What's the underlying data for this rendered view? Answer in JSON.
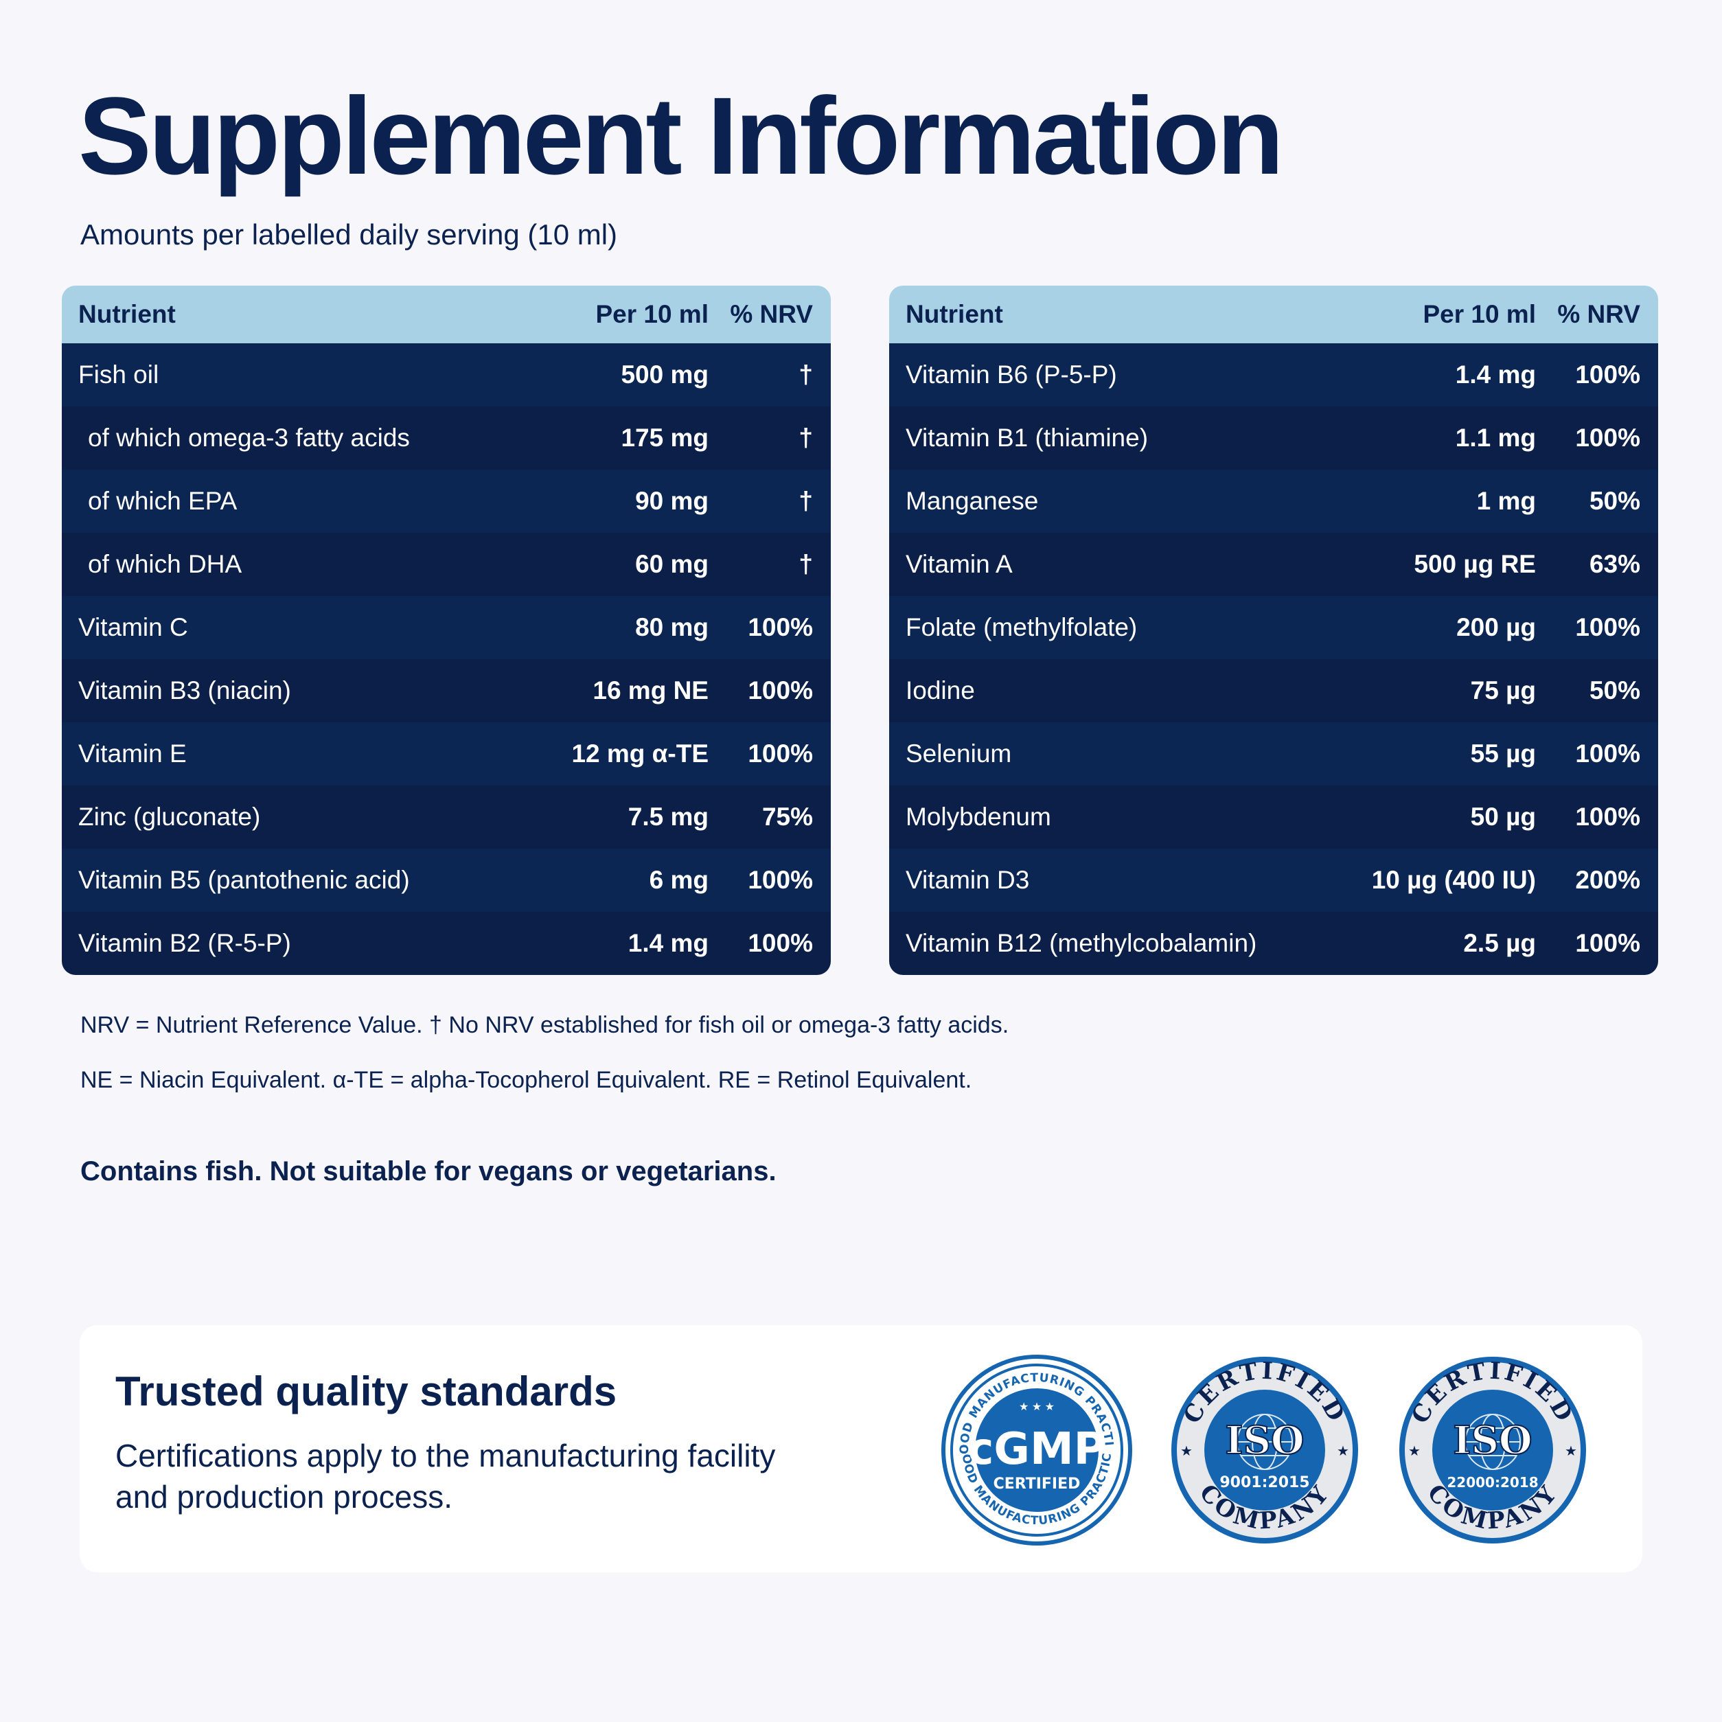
{
  "title": "Supplement Information",
  "subtitle": "Amounts per labelled daily serving (10 ml)",
  "table_headers": {
    "nutrient": "Nutrient",
    "amount": "Per 10 ml",
    "nrv": "% NRV"
  },
  "left_table": [
    {
      "name": "Fish oil",
      "amount": "500 mg",
      "nrv": "†"
    },
    {
      "name": "of which omega-3 fatty acids",
      "amount": "175 mg",
      "nrv": "†"
    },
    {
      "name": "of which EPA",
      "amount": "90 mg",
      "nrv": "†"
    },
    {
      "name": "of which DHA",
      "amount": "60 mg",
      "nrv": "†"
    },
    {
      "name": "Vitamin C",
      "amount": "80 mg",
      "nrv": "100%"
    },
    {
      "name": "Vitamin B3 (niacin)",
      "amount": "16 mg NE",
      "nrv": "100%"
    },
    {
      "name": "Vitamin E",
      "amount": "12 mg α-TE",
      "nrv": "100%"
    },
    {
      "name": "Zinc (gluconate)",
      "amount": "7.5 mg",
      "nrv": "75%"
    },
    {
      "name": "Vitamin B5 (pantothenic acid)",
      "amount": "6 mg",
      "nrv": "100%"
    },
    {
      "name": "Vitamin B2 (R-5-P)",
      "amount": "1.4 mg",
      "nrv": "100%"
    }
  ],
  "right_table": [
    {
      "name": "Vitamin B6 (P-5-P)",
      "amount": "1.4 mg",
      "nrv": "100%"
    },
    {
      "name": "Vitamin B1 (thiamine)",
      "amount": "1.1 mg",
      "nrv": "100%"
    },
    {
      "name": "Manganese",
      "amount": "1 mg",
      "nrv": "50%"
    },
    {
      "name": "Vitamin A",
      "amount": "500 µg RE",
      "nrv": "63%"
    },
    {
      "name": "Folate (methylfolate)",
      "amount": "200 µg",
      "nrv": "100%"
    },
    {
      "name": "Iodine",
      "amount": "75 µg",
      "nrv": "50%"
    },
    {
      "name": "Selenium",
      "amount": "55 µg",
      "nrv": "100%"
    },
    {
      "name": "Molybdenum",
      "amount": "50 µg",
      "nrv": "100%"
    },
    {
      "name": "Vitamin D3",
      "amount": "10 µg (400 IU)",
      "nrv": "200%"
    },
    {
      "name": "Vitamin B12 (methylcobalamin)",
      "amount": "2.5 µg",
      "nrv": "100%"
    }
  ],
  "notes": [
    "NRV = Nutrient Reference Value. † No NRV established for fish oil or omega-3 fatty acids.",
    "NE = Niacin Equivalent. α-TE = alpha-Tocopherol Equivalent. RE = Retinol Equivalent."
  ],
  "warning": "Contains fish. Not suitable for vegans or vegetarians.",
  "quality": {
    "title": "Trusted quality standards",
    "description": "Certifications apply to the manufacturing facility and production process.",
    "badges": {
      "cgmp": {
        "main": "cGMP",
        "sub": "CERTIFIED",
        "ring_top": "GOOD MANUFACTURING PRACTICE",
        "ring_bottom": "GOOD MANUFACTURING PRACTICE",
        "icon": "cgmp-badge-icon"
      },
      "iso9001": {
        "top": "CERTIFIED",
        "main": "ISO",
        "code": "9001:2015",
        "bottom": "COMPANY",
        "icon": "iso-9001-badge-icon"
      },
      "iso22000": {
        "top": "CERTIFIED",
        "main": "ISO",
        "code": "22000:2018",
        "bottom": "COMPANY",
        "icon": "iso-22000-badge-icon"
      }
    }
  },
  "colors": {
    "navy": "#0b2250",
    "row_dark": "#0b1f48",
    "row_light": "#0c2653",
    "header_blue": "#a9d1e5",
    "badge_blue": "#1565b0",
    "background": "#f6f6fb"
  }
}
